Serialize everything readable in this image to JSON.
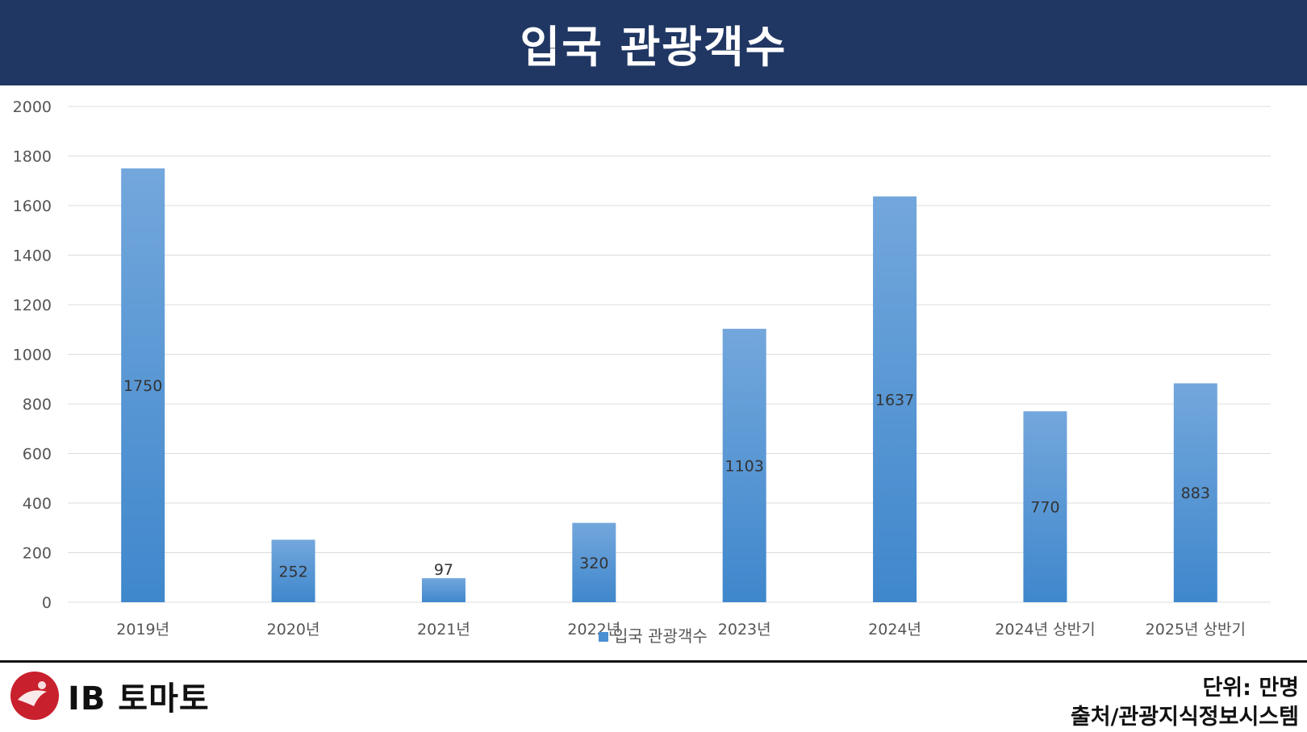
{
  "title": "입국 관광객수",
  "footer": {
    "brand": "IB 토마토",
    "unit_note": "단위: 만명",
    "source_note": "출처/관광지식정보시스템"
  },
  "colors": {
    "header_bg": "#213763",
    "bar_top": "#73a7dc",
    "bar_bottom": "#3f87cc",
    "grid": "#dddddd",
    "logo": "#c8202c"
  },
  "chart_data": {
    "type": "bar",
    "categories": [
      "2019년",
      "2020년",
      "2021년",
      "2022년",
      "2023년",
      "2024년",
      "2024년 상반기",
      "2025년 상반기"
    ],
    "series": [
      {
        "name": "입국 관광객수",
        "values": [
          1750,
          252,
          97,
          320,
          1103,
          1637,
          770,
          883
        ]
      }
    ],
    "data_labels": [
      "1750",
      "252",
      "97",
      "320",
      "1103",
      "1637",
      "770",
      "883"
    ],
    "y_ticks": [
      "0",
      "200",
      "400",
      "600",
      "800",
      "1000",
      "1200",
      "1400",
      "1600",
      "1800",
      "2000"
    ],
    "ylim": [
      0,
      2000
    ],
    "grid": true,
    "legend": "bottom"
  }
}
